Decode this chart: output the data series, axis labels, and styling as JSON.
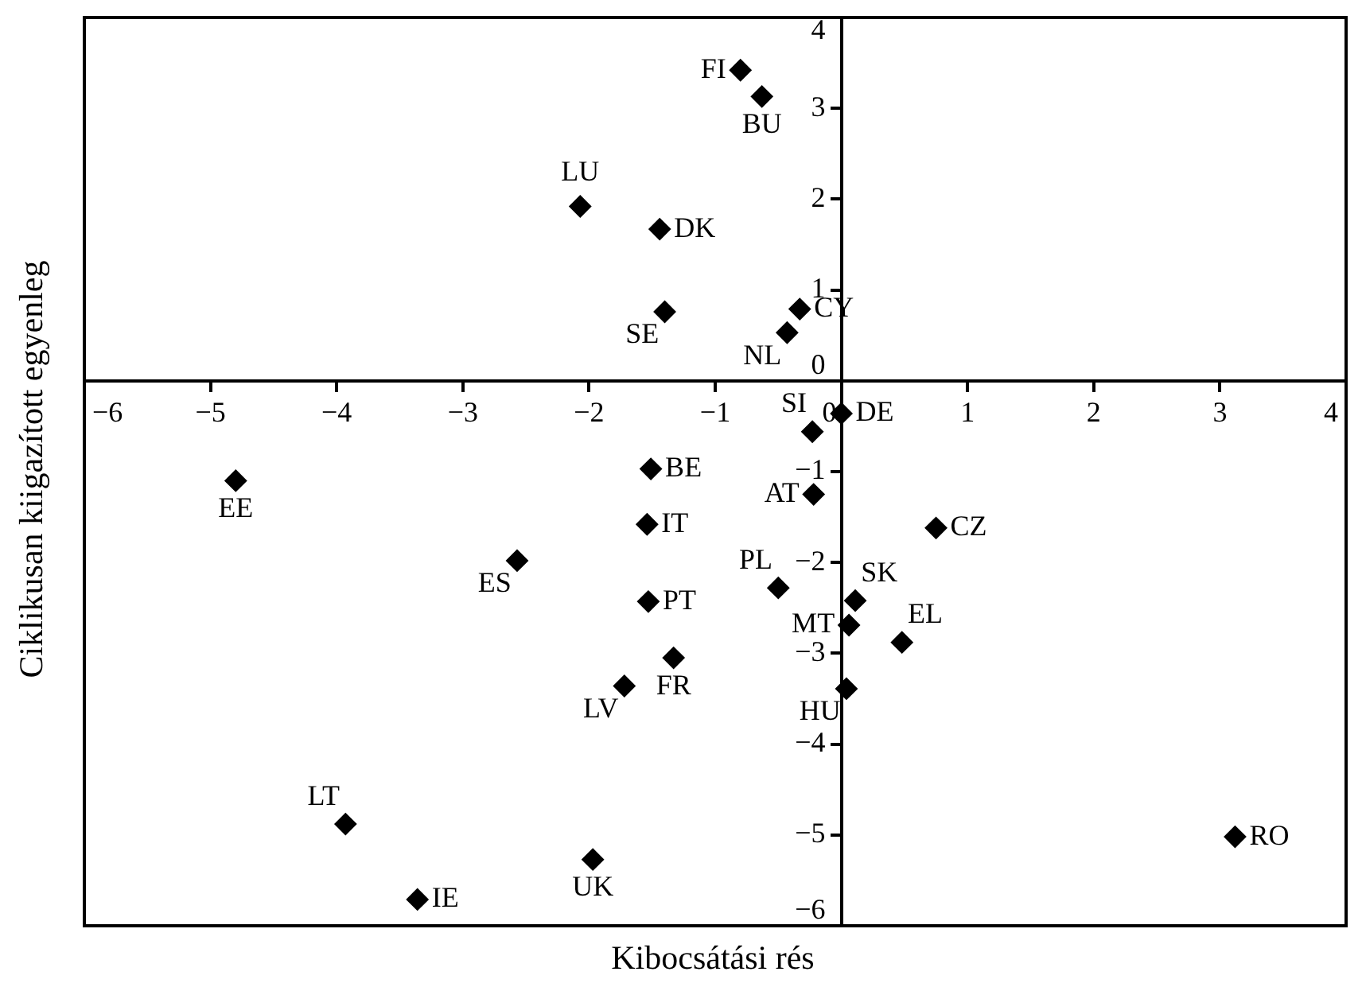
{
  "chart_data": {
    "type": "scatter",
    "xlabel": "Kibocsátási rés",
    "ylabel": "Ciklikusan kiigazított egyenleg",
    "xlim": [
      -6,
      4
    ],
    "xticks": [
      -6,
      -5,
      -4,
      -3,
      -2,
      -1,
      0,
      1,
      2,
      3,
      4
    ],
    "ylim": [
      -6,
      4
    ],
    "yticks": [
      -6,
      -5,
      -4,
      -3,
      -2,
      -1,
      0,
      1,
      2,
      3,
      4
    ],
    "grid": false,
    "legend": false,
    "marker": "diamond",
    "series": [
      {
        "color": "#000000",
        "x": [
          -0.8,
          -0.63,
          -2.07,
          -1.44,
          -1.4,
          -0.33,
          -0.43,
          0.0,
          -0.23,
          -1.51,
          -4.8,
          -1.54,
          -2.57,
          -1.53,
          -1.33,
          -1.72,
          -3.93,
          -1.97,
          -3.36,
          -0.22,
          0.75,
          -0.5,
          0.11,
          0.06,
          0.48,
          0.04,
          3.12
        ],
        "values": [
          3.42,
          3.13,
          1.92,
          1.67,
          0.76,
          0.79,
          0.53,
          -0.36,
          -0.56,
          -0.97,
          -1.1,
          -1.58,
          -1.98,
          -2.43,
          -3.05,
          -3.36,
          -4.88,
          -5.27,
          -5.71,
          -1.25,
          -1.62,
          -2.28,
          -2.42,
          -2.69,
          -2.88,
          -3.39,
          -5.02
        ]
      }
    ],
    "annotations": [
      {
        "text": "FI",
        "x": -0.8,
        "y": 3.42
      },
      {
        "text": "BU",
        "x": -0.63,
        "y": 3.13
      },
      {
        "text": "LU",
        "x": -2.07,
        "y": 1.92
      },
      {
        "text": "DK",
        "x": -1.44,
        "y": 1.67
      },
      {
        "text": "SE",
        "x": -1.4,
        "y": 0.76
      },
      {
        "text": "CY",
        "x": -0.33,
        "y": 0.79
      },
      {
        "text": "NL",
        "x": -0.43,
        "y": 0.53
      },
      {
        "text": "DE",
        "x": 0.0,
        "y": -0.36
      },
      {
        "text": "SI",
        "x": -0.23,
        "y": -0.56
      },
      {
        "text": "BE",
        "x": -1.51,
        "y": -0.97
      },
      {
        "text": "EE",
        "x": -4.8,
        "y": -1.1
      },
      {
        "text": "IT",
        "x": -1.54,
        "y": -1.58
      },
      {
        "text": "ES",
        "x": -2.57,
        "y": -1.98
      },
      {
        "text": "PT",
        "x": -1.53,
        "y": -2.43
      },
      {
        "text": "FR",
        "x": -1.33,
        "y": -3.05
      },
      {
        "text": "LV",
        "x": -1.72,
        "y": -3.36
      },
      {
        "text": "LT",
        "x": -3.93,
        "y": -4.88
      },
      {
        "text": "UK",
        "x": -1.97,
        "y": -5.27
      },
      {
        "text": "IE",
        "x": -3.36,
        "y": -5.71
      },
      {
        "text": "AT",
        "x": -0.22,
        "y": -1.25
      },
      {
        "text": "CZ",
        "x": 0.75,
        "y": -1.62
      },
      {
        "text": "PL",
        "x": -0.5,
        "y": -2.28
      },
      {
        "text": "SK",
        "x": 0.11,
        "y": -2.42
      },
      {
        "text": "MT",
        "x": 0.06,
        "y": -2.69
      },
      {
        "text": "EL",
        "x": 0.48,
        "y": -2.88
      },
      {
        "text": "HU",
        "x": 0.04,
        "y": -3.39
      },
      {
        "text": "RO",
        "x": 3.12,
        "y": -5.02
      }
    ]
  }
}
